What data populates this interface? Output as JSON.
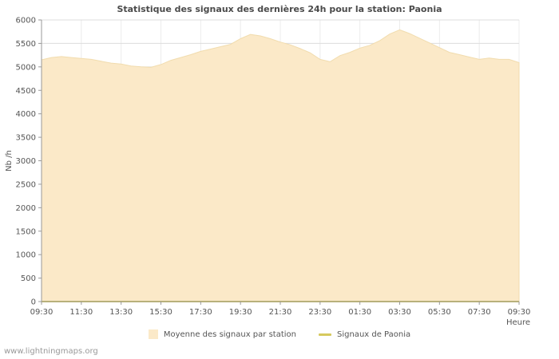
{
  "page": {
    "watermark": "www.lightningmaps.org"
  },
  "chart": {
    "title": "Statistique des signaux des dernières 24h pour la station: Paonia",
    "ylabel": "Nb /h",
    "xlabel": "Heure"
  },
  "legend": {
    "items": [
      {
        "label": "Moyenne des signaux par station",
        "color": "#fbe9c8",
        "type": "area"
      },
      {
        "label": "Signaux de Paonia",
        "color": "#d6c95e",
        "type": "line"
      }
    ]
  },
  "chart_data": {
    "type": "area",
    "title": "Statistique des signaux des dernières 24h pour la station: Paonia",
    "xlabel": "Heure",
    "ylabel": "Nb /h",
    "ylim": [
      0,
      6000
    ],
    "y_tick_step": 500,
    "x_range_hours": [
      0,
      24
    ],
    "x_tick_hours": [
      0,
      2,
      4,
      6,
      8,
      10,
      12,
      14,
      16,
      18,
      20,
      22,
      24
    ],
    "x_tick_labels": [
      "09:30",
      "11:30",
      "13:30",
      "15:30",
      "17:30",
      "19:30",
      "21:30",
      "23:30",
      "01:30",
      "03:30",
      "05:30",
      "07:30",
      "09:30"
    ],
    "grid": true,
    "legend_position": "bottom",
    "colors": {
      "area_fill": "#fbe9c8",
      "area_edge": "#f1dcae",
      "line": "#d6c95e",
      "grid_h": "#dcdcdc",
      "grid_v": "#ececec",
      "axis": "#999999",
      "text": "#555555"
    },
    "series": [
      {
        "name": "Moyenne des signaux par station",
        "type": "area",
        "color": "#fbe9c8",
        "x": [
          0,
          0.5,
          1,
          1.5,
          2,
          2.5,
          3,
          3.5,
          4,
          4.5,
          5,
          5.5,
          6,
          6.5,
          7,
          7.5,
          8,
          8.5,
          9,
          9.5,
          10,
          10.5,
          11,
          11.5,
          12,
          12.5,
          13,
          13.5,
          14,
          14.5,
          15,
          15.5,
          16,
          16.5,
          17,
          17.5,
          18,
          18.5,
          19,
          19.5,
          20,
          20.5,
          21,
          21.5,
          22,
          22.5,
          23,
          23.5,
          24
        ],
        "values": [
          5150,
          5200,
          5220,
          5200,
          5180,
          5160,
          5120,
          5080,
          5060,
          5020,
          5000,
          4990,
          5050,
          5140,
          5200,
          5260,
          5330,
          5380,
          5430,
          5480,
          5600,
          5690,
          5660,
          5600,
          5530,
          5470,
          5390,
          5300,
          5160,
          5110,
          5240,
          5310,
          5400,
          5460,
          5560,
          5700,
          5790,
          5710,
          5610,
          5510,
          5410,
          5310,
          5260,
          5210,
          5160,
          5190,
          5160,
          5160,
          5090
        ]
      },
      {
        "name": "Signaux de Paonia",
        "type": "line",
        "color": "#d6c95e",
        "x": [
          0,
          24
        ],
        "values": [
          0,
          0
        ]
      }
    ]
  }
}
